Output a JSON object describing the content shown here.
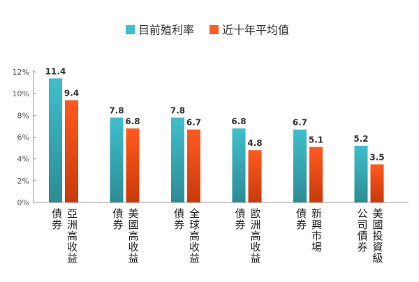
{
  "chart_data": {
    "type": "bar",
    "title": "",
    "xlabel": "",
    "ylabel": "",
    "ylim": [
      0,
      12
    ],
    "y_ticks": [
      0,
      2,
      4,
      6,
      8,
      10,
      12
    ],
    "y_tick_format": "{v}%",
    "grid": false,
    "legend_position": "top-center",
    "categories": [
      "亞洲高收益債券",
      "美國高收益債券",
      "全球高收益債券",
      "歐洲高收益債券",
      "新興市場債券",
      "美國投資級公司債券"
    ],
    "category_label_lines": [
      [
        "亞洲高收益",
        "債券"
      ],
      [
        "美國高收益",
        "債券"
      ],
      [
        "全球高收益",
        "債券"
      ],
      [
        "歐洲高收益",
        "債券"
      ],
      [
        "新興市場",
        "債券"
      ],
      [
        "美國投資級",
        "公司債券"
      ]
    ],
    "series": [
      {
        "name": "目前殖利率",
        "values": [
          11.4,
          7.8,
          7.8,
          6.8,
          6.7,
          5.2
        ],
        "labels": [
          "11.4",
          "7.8",
          "7.8",
          "6.8",
          "6.7",
          "5.2"
        ],
        "color": "#3FBFCB",
        "color_dark": "#2C8C95"
      },
      {
        "name": "近十年平均值",
        "values": [
          9.4,
          6.8,
          6.7,
          4.8,
          5.1,
          3.5
        ],
        "labels": [
          "9.4",
          "6.8",
          "6.7",
          "4.8",
          "5.1",
          "3.5"
        ],
        "color": "#FF5A1F",
        "color_dark": "#C83A0A"
      }
    ]
  }
}
